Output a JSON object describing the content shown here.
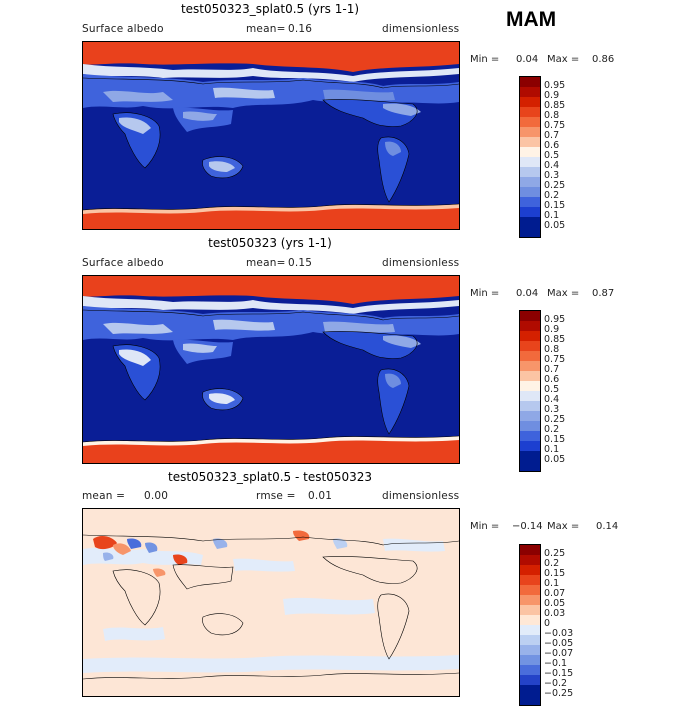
{
  "season": "MAM",
  "panels": [
    {
      "title": "test050323_splat0.5 (yrs 1-1)",
      "left_label": "Surface albedo",
      "mean_label": "mean=",
      "mean_value": "0.16",
      "right_label": "dimensionless",
      "min_label": "Min =",
      "min_value": "0.04",
      "max_label": "Max =",
      "max_value": "0.86",
      "levels": [
        "0.95",
        "0.9",
        "0.85",
        "0.8",
        "0.75",
        "0.7",
        "0.6",
        "0.5",
        "0.4",
        "0.3",
        "0.25",
        "0.2",
        "0.15",
        "0.1",
        "0.05"
      ]
    },
    {
      "title": "test050323 (yrs 1-1)",
      "left_label": "Surface albedo",
      "mean_label": "mean=",
      "mean_value": "0.15",
      "right_label": "dimensionless",
      "min_label": "Min =",
      "min_value": "0.04",
      "max_label": "Max =",
      "max_value": "0.87",
      "levels": [
        "0.95",
        "0.9",
        "0.85",
        "0.8",
        "0.75",
        "0.7",
        "0.6",
        "0.5",
        "0.4",
        "0.3",
        "0.25",
        "0.2",
        "0.15",
        "0.1",
        "0.05"
      ]
    },
    {
      "title": "test050323_splat0.5 - test050323",
      "left_label": "mean =",
      "mean_value": "0.00",
      "mid_label": "rmse =",
      "rmse_value": "0.01",
      "right_label": "dimensionless",
      "min_label": "Min =",
      "min_value": "−0.14",
      "max_label": "Max =",
      "max_value": "0.14",
      "levels": [
        "0.25",
        "0.2",
        "0.15",
        "0.1",
        "0.07",
        "0.05",
        "0.03",
        "0",
        "−0.03",
        "−0.05",
        "−0.07",
        "−0.1",
        "−0.15",
        "−0.2",
        "−0.25"
      ]
    }
  ],
  "colors": {
    "albedo_scale": [
      "#8b0000",
      "#b00b00",
      "#d42000",
      "#e8441c",
      "#f26a3c",
      "#f7956a",
      "#fbc4a4",
      "#fff3e6",
      "#dfe7f7",
      "#b6c8ee",
      "#8fa8e6",
      "#6f8ee0",
      "#3f63dc",
      "#1c3fd0",
      "#001c90"
    ],
    "diff_scale": [
      "#8b0000",
      "#b00b00",
      "#d42000",
      "#e8441c",
      "#f26a3c",
      "#f7956a",
      "#fbc4a4",
      "#ffe8d6",
      "#e2ecfa",
      "#bcd0f2",
      "#98b2ea",
      "#7293e2",
      "#4a6ddb",
      "#2443c8",
      "#001c90"
    ],
    "ocean": "#081a8c",
    "low_land": "#2a50d6",
    "ice": "#e9411c",
    "diff_bg": "#fde6d6"
  }
}
